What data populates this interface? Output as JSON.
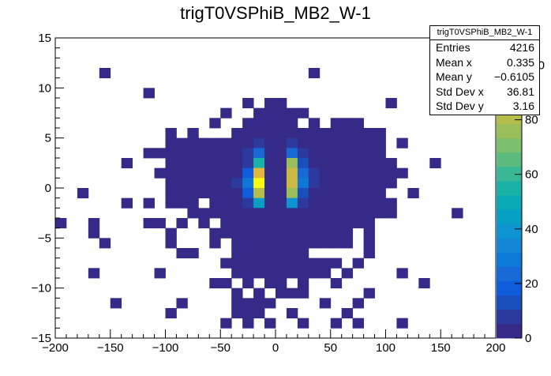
{
  "chart_data": {
    "type": "heatmap",
    "title": "trigT0VSPhiB_MB2_W-1",
    "xlabel": "",
    "ylabel": "",
    "xlim": [
      -200,
      200
    ],
    "ylim": [
      -15,
      15
    ],
    "x_bins": 40,
    "y_bins": 30,
    "x_ticks": [
      -200,
      -150,
      -100,
      -50,
      0,
      50,
      100,
      150,
      200
    ],
    "x_tick_labels": [
      "−200",
      "−150",
      "−100",
      "−50",
      "0",
      "50",
      "100",
      "150",
      "200"
    ],
    "y_ticks": [
      -15,
      -10,
      -5,
      0,
      5,
      10,
      15
    ],
    "y_tick_labels": [
      "−15",
      "−10",
      "−5",
      "0",
      "5",
      "10",
      "15"
    ],
    "z_range": [
      0,
      110
    ],
    "z_ticks": [
      0,
      20,
      40,
      60,
      80,
      100
    ],
    "z_tick_labels": [
      "0",
      "20",
      "40",
      "60",
      "80",
      "100"
    ],
    "palette": [
      "#352a87",
      "#2c3a9e",
      "#1a4ebd",
      "#0f5cdd",
      "#1769d5",
      "#0d78d6",
      "#1387d6",
      "#0e94d0",
      "#07a0c4",
      "#09aab5",
      "#1ab2a6",
      "#3ab794",
      "#5cbc80",
      "#7cbf6c",
      "#9abf5a",
      "#b6bd4a",
      "#ccb942",
      "#e1b83c",
      "#f2c13a",
      "#f9d32c",
      "#f9fb0e"
    ],
    "cells": [
      [
        -156,
        11,
        1
      ],
      [
        32,
        11,
        1
      ],
      [
        -116,
        9,
        1
      ],
      [
        -26,
        8,
        1
      ],
      [
        -6,
        8,
        1
      ],
      [
        0,
        8,
        1
      ],
      [
        104,
        8,
        1
      ],
      [
        -46,
        7,
        1
      ],
      [
        -16,
        7,
        1
      ],
      [
        -6,
        7,
        1
      ],
      [
        4,
        7,
        1
      ],
      [
        14,
        7,
        1
      ],
      [
        24,
        7,
        1
      ],
      [
        -56,
        6,
        1
      ],
      [
        -26,
        6,
        1
      ],
      [
        -16,
        6,
        1
      ],
      [
        -6,
        6,
        1
      ],
      [
        4,
        6,
        2
      ],
      [
        14,
        6,
        1
      ],
      [
        34,
        6,
        1
      ],
      [
        54,
        6,
        1
      ],
      [
        64,
        6,
        1
      ],
      [
        74,
        6,
        1
      ],
      [
        -96,
        5,
        1
      ],
      [
        -76,
        5,
        1
      ],
      [
        -36,
        5,
        1
      ],
      [
        -26,
        5,
        1
      ],
      [
        -16,
        5,
        4
      ],
      [
        -6,
        5,
        1
      ],
      [
        4,
        5,
        2
      ],
      [
        14,
        5,
        4
      ],
      [
        24,
        5,
        1
      ],
      [
        34,
        5,
        1
      ],
      [
        44,
        5,
        1
      ],
      [
        54,
        5,
        1
      ],
      [
        64,
        5,
        1
      ],
      [
        74,
        5,
        1
      ],
      [
        84,
        5,
        1
      ],
      [
        94,
        5,
        1
      ],
      [
        -96,
        4,
        1
      ],
      [
        -86,
        4,
        1
      ],
      [
        -76,
        4,
        1
      ],
      [
        -66,
        4,
        1
      ],
      [
        -56,
        4,
        1
      ],
      [
        -46,
        4,
        1
      ],
      [
        -36,
        4,
        1
      ],
      [
        -26,
        4,
        3
      ],
      [
        -16,
        4,
        8
      ],
      [
        -6,
        4,
        1
      ],
      [
        4,
        4,
        2
      ],
      [
        14,
        4,
        8
      ],
      [
        24,
        4,
        3
      ],
      [
        34,
        4,
        1
      ],
      [
        44,
        4,
        1
      ],
      [
        54,
        4,
        1
      ],
      [
        64,
        4,
        1
      ],
      [
        74,
        4,
        1
      ],
      [
        84,
        4,
        1
      ],
      [
        94,
        4,
        1
      ],
      [
        114,
        4,
        1
      ],
      [
        -116,
        3,
        1
      ],
      [
        -106,
        3,
        1
      ],
      [
        -96,
        3,
        1
      ],
      [
        -86,
        3,
        1
      ],
      [
        -76,
        3,
        1
      ],
      [
        -66,
        3,
        1
      ],
      [
        -56,
        3,
        1
      ],
      [
        -46,
        3,
        2
      ],
      [
        -36,
        3,
        3
      ],
      [
        -26,
        3,
        9
      ],
      [
        -16,
        3,
        24
      ],
      [
        -6,
        3,
        2
      ],
      [
        4,
        3,
        4
      ],
      [
        14,
        3,
        26
      ],
      [
        24,
        3,
        8
      ],
      [
        34,
        3,
        2
      ],
      [
        44,
        3,
        1
      ],
      [
        54,
        3,
        1
      ],
      [
        64,
        3,
        1
      ],
      [
        74,
        3,
        1
      ],
      [
        84,
        3,
        1
      ],
      [
        94,
        3,
        1
      ],
      [
        -136,
        2,
        1
      ],
      [
        -96,
        2,
        1
      ],
      [
        -86,
        2,
        1
      ],
      [
        -76,
        2,
        1
      ],
      [
        -66,
        2,
        1
      ],
      [
        -56,
        2,
        1
      ],
      [
        -46,
        2,
        1
      ],
      [
        -36,
        2,
        4
      ],
      [
        -26,
        2,
        8
      ],
      [
        -16,
        2,
        57
      ],
      [
        -6,
        2,
        3
      ],
      [
        4,
        2,
        3
      ],
      [
        14,
        2,
        75
      ],
      [
        24,
        2,
        12
      ],
      [
        34,
        2,
        3
      ],
      [
        44,
        2,
        1
      ],
      [
        54,
        2,
        1
      ],
      [
        64,
        2,
        1
      ],
      [
        74,
        2,
        1
      ],
      [
        84,
        2,
        2
      ],
      [
        94,
        2,
        2
      ],
      [
        104,
        2,
        1
      ],
      [
        144,
        2,
        1
      ],
      [
        -106,
        1,
        1
      ],
      [
        -96,
        1,
        1
      ],
      [
        -86,
        1,
        1
      ],
      [
        -76,
        1,
        1
      ],
      [
        -66,
        1,
        1
      ],
      [
        -56,
        1,
        1
      ],
      [
        -46,
        1,
        2
      ],
      [
        -36,
        1,
        5
      ],
      [
        -26,
        1,
        16
      ],
      [
        -16,
        1,
        92
      ],
      [
        -6,
        1,
        4
      ],
      [
        4,
        1,
        4
      ],
      [
        14,
        1,
        89
      ],
      [
        24,
        1,
        22
      ],
      [
        34,
        1,
        6
      ],
      [
        44,
        1,
        2
      ],
      [
        54,
        1,
        1
      ],
      [
        64,
        1,
        1
      ],
      [
        74,
        1,
        1
      ],
      [
        84,
        1,
        1
      ],
      [
        94,
        1,
        1
      ],
      [
        104,
        1,
        1
      ],
      [
        114,
        1,
        1
      ],
      [
        -96,
        0,
        2
      ],
      [
        -86,
        0,
        3
      ],
      [
        -76,
        0,
        1
      ],
      [
        -66,
        0,
        2
      ],
      [
        -56,
        0,
        1
      ],
      [
        -46,
        0,
        2
      ],
      [
        -36,
        0,
        6
      ],
      [
        -26,
        0,
        27
      ],
      [
        -16,
        0,
        110
      ],
      [
        -6,
        0,
        3
      ],
      [
        4,
        0,
        3
      ],
      [
        14,
        0,
        87
      ],
      [
        24,
        0,
        30
      ],
      [
        34,
        0,
        6
      ],
      [
        44,
        0,
        3
      ],
      [
        54,
        0,
        1
      ],
      [
        64,
        0,
        2
      ],
      [
        74,
        0,
        1
      ],
      [
        84,
        0,
        1
      ],
      [
        94,
        0,
        1
      ],
      [
        104,
        0,
        1
      ],
      [
        -176,
        -1,
        1
      ],
      [
        -96,
        -1,
        1
      ],
      [
        -86,
        -1,
        1
      ],
      [
        -76,
        -1,
        1
      ],
      [
        -66,
        -1,
        1
      ],
      [
        -56,
        -1,
        1
      ],
      [
        -46,
        -1,
        2
      ],
      [
        -36,
        -1,
        5
      ],
      [
        -26,
        -1,
        18
      ],
      [
        -16,
        -1,
        80
      ],
      [
        -6,
        -1,
        2
      ],
      [
        4,
        -1,
        3
      ],
      [
        14,
        -1,
        78
      ],
      [
        24,
        -1,
        15
      ],
      [
        34,
        -1,
        5
      ],
      [
        44,
        -1,
        2
      ],
      [
        54,
        -1,
        1
      ],
      [
        64,
        -1,
        1
      ],
      [
        74,
        -1,
        1
      ],
      [
        84,
        -1,
        1
      ],
      [
        94,
        -1,
        1
      ],
      [
        124,
        -1,
        1
      ],
      [
        -136,
        -2,
        1
      ],
      [
        -116,
        -2,
        1
      ],
      [
        -96,
        -2,
        1
      ],
      [
        -86,
        -2,
        1
      ],
      [
        -76,
        -2,
        1
      ],
      [
        -56,
        -2,
        1
      ],
      [
        -46,
        -2,
        1
      ],
      [
        -36,
        -2,
        2
      ],
      [
        -26,
        -2,
        7
      ],
      [
        -16,
        -2,
        42
      ],
      [
        -6,
        -2,
        2
      ],
      [
        4,
        -2,
        3
      ],
      [
        14,
        -2,
        38
      ],
      [
        24,
        -2,
        9
      ],
      [
        34,
        -2,
        2
      ],
      [
        44,
        -2,
        1
      ],
      [
        54,
        -2,
        1
      ],
      [
        64,
        -2,
        1
      ],
      [
        74,
        -2,
        1
      ],
      [
        84,
        -2,
        1
      ],
      [
        94,
        -2,
        1
      ],
      [
        104,
        -2,
        1
      ],
      [
        -76,
        -3,
        1
      ],
      [
        -66,
        -3,
        1
      ],
      [
        -56,
        -3,
        1
      ],
      [
        -46,
        -3,
        1
      ],
      [
        -36,
        -3,
        1
      ],
      [
        -26,
        -3,
        3
      ],
      [
        -16,
        -3,
        5
      ],
      [
        -6,
        -3,
        1
      ],
      [
        4,
        -3,
        2
      ],
      [
        14,
        -3,
        4
      ],
      [
        24,
        -3,
        2
      ],
      [
        34,
        -3,
        1
      ],
      [
        44,
        -3,
        1
      ],
      [
        54,
        -3,
        1
      ],
      [
        64,
        -3,
        1
      ],
      [
        74,
        -3,
        1
      ],
      [
        84,
        -3,
        1
      ],
      [
        94,
        -3,
        1
      ],
      [
        104,
        -3,
        1
      ],
      [
        164,
        -3,
        1
      ],
      [
        -196,
        -4,
        1
      ],
      [
        -166,
        -4,
        1
      ],
      [
        -116,
        -4,
        1
      ],
      [
        -106,
        -4,
        1
      ],
      [
        -86,
        -4,
        1
      ],
      [
        -66,
        -4,
        1
      ],
      [
        -46,
        -4,
        1
      ],
      [
        -36,
        -4,
        1
      ],
      [
        -26,
        -4,
        2
      ],
      [
        -16,
        -4,
        3
      ],
      [
        -6,
        -4,
        1
      ],
      [
        4,
        -4,
        1
      ],
      [
        14,
        -4,
        2
      ],
      [
        24,
        -4,
        2
      ],
      [
        34,
        -4,
        1
      ],
      [
        44,
        -4,
        1
      ],
      [
        54,
        -4,
        1
      ],
      [
        64,
        -4,
        1
      ],
      [
        74,
        -4,
        1
      ],
      [
        84,
        -4,
        1
      ],
      [
        -166,
        -5,
        1
      ],
      [
        -96,
        -5,
        1
      ],
      [
        -56,
        -5,
        1
      ],
      [
        -46,
        -5,
        1
      ],
      [
        -36,
        -5,
        1
      ],
      [
        -26,
        -5,
        1
      ],
      [
        -16,
        -5,
        2
      ],
      [
        -6,
        -5,
        1
      ],
      [
        4,
        -5,
        1
      ],
      [
        14,
        -5,
        1
      ],
      [
        24,
        -5,
        1
      ],
      [
        34,
        -5,
        1
      ],
      [
        44,
        -5,
        1
      ],
      [
        54,
        -5,
        1
      ],
      [
        64,
        -5,
        1
      ],
      [
        84,
        -5,
        1
      ],
      [
        -156,
        -6,
        1
      ],
      [
        -96,
        -6,
        1
      ],
      [
        -56,
        -6,
        1
      ],
      [
        -36,
        -6,
        1
      ],
      [
        -26,
        -6,
        1
      ],
      [
        -16,
        -6,
        1
      ],
      [
        -6,
        -6,
        1
      ],
      [
        4,
        -6,
        1
      ],
      [
        14,
        -6,
        1
      ],
      [
        24,
        -6,
        1
      ],
      [
        34,
        -6,
        1
      ],
      [
        44,
        -6,
        1
      ],
      [
        54,
        -6,
        1
      ],
      [
        64,
        -6,
        1
      ],
      [
        84,
        -6,
        1
      ],
      [
        -86,
        -7,
        1
      ],
      [
        -76,
        -7,
        1
      ],
      [
        -36,
        -7,
        1
      ],
      [
        -26,
        -7,
        1
      ],
      [
        -16,
        -7,
        1
      ],
      [
        -6,
        -7,
        1
      ],
      [
        4,
        -7,
        1
      ],
      [
        14,
        -7,
        1
      ],
      [
        24,
        -7,
        1
      ],
      [
        84,
        -7,
        1
      ],
      [
        -46,
        -8,
        1
      ],
      [
        -36,
        -8,
        1
      ],
      [
        -26,
        -8,
        1
      ],
      [
        -16,
        -8,
        1
      ],
      [
        -6,
        -8,
        1
      ],
      [
        4,
        -8,
        1
      ],
      [
        14,
        -8,
        1
      ],
      [
        24,
        -8,
        1
      ],
      [
        34,
        -8,
        1
      ],
      [
        44,
        -8,
        1
      ],
      [
        54,
        -8,
        1
      ],
      [
        74,
        -8,
        1
      ],
      [
        -166,
        -9,
        1
      ],
      [
        -106,
        -9,
        1
      ],
      [
        -36,
        -9,
        1
      ],
      [
        -26,
        -9,
        1
      ],
      [
        -16,
        -9,
        1
      ],
      [
        -6,
        -9,
        1
      ],
      [
        4,
        -9,
        1
      ],
      [
        14,
        -9,
        1
      ],
      [
        24,
        -9,
        1
      ],
      [
        34,
        -9,
        1
      ],
      [
        44,
        -9,
        1
      ],
      [
        64,
        -9,
        1
      ],
      [
        114,
        -9,
        1
      ],
      [
        -56,
        -10,
        1
      ],
      [
        -46,
        -10,
        1
      ],
      [
        -26,
        -10,
        1
      ],
      [
        -6,
        -10,
        1
      ],
      [
        4,
        -10,
        1
      ],
      [
        24,
        -10,
        1
      ],
      [
        54,
        -10,
        1
      ],
      [
        134,
        -10,
        1
      ],
      [
        -36,
        -11,
        1
      ],
      [
        -16,
        -11,
        1
      ],
      [
        4,
        -11,
        1
      ],
      [
        14,
        -11,
        1
      ],
      [
        24,
        -11,
        1
      ],
      [
        84,
        -11,
        1
      ],
      [
        -146,
        -12,
        1
      ],
      [
        -86,
        -12,
        1
      ],
      [
        -36,
        -12,
        1
      ],
      [
        -26,
        -12,
        1
      ],
      [
        -16,
        -12,
        1
      ],
      [
        -6,
        -12,
        1
      ],
      [
        44,
        -12,
        1
      ],
      [
        74,
        -12,
        1
      ],
      [
        -96,
        -13,
        1
      ],
      [
        -36,
        -13,
        1
      ],
      [
        -26,
        -13,
        1
      ],
      [
        -16,
        -13,
        1
      ],
      [
        14,
        -13,
        1
      ],
      [
        64,
        -13,
        1
      ],
      [
        -46,
        -14,
        1
      ],
      [
        -26,
        -14,
        1
      ],
      [
        -6,
        -14,
        1
      ],
      [
        24,
        -14,
        1
      ],
      [
        54,
        -14,
        1
      ],
      [
        74,
        -14,
        1
      ],
      [
        114,
        -14,
        1
      ]
    ]
  },
  "stats": {
    "title": "trigT0VSPhiB_MB2_W-1",
    "rows": [
      {
        "label": "Entries",
        "value": "4216"
      },
      {
        "label": "Mean x",
        "value": "0.335"
      },
      {
        "label": "Mean y",
        "value": "−0.6105"
      },
      {
        "label": "Std Dev x",
        "value": "36.81"
      },
      {
        "label": "Std Dev y",
        "value": "3.16"
      }
    ]
  }
}
